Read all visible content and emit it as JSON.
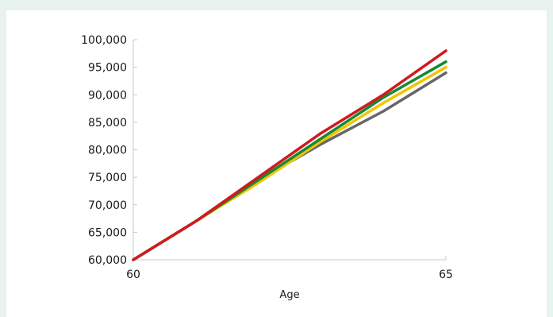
{
  "chart_data": {
    "type": "line",
    "title": "",
    "xlabel": "Age",
    "ylabel": "",
    "x": [
      60,
      61,
      62,
      63,
      64,
      65
    ],
    "xlim": [
      60,
      65
    ],
    "ylim": [
      60000,
      100000
    ],
    "x_ticks": [
      60,
      65
    ],
    "x_tick_labels": [
      "60",
      "65"
    ],
    "y_ticks": [
      60000,
      65000,
      70000,
      75000,
      80000,
      85000,
      90000,
      95000,
      100000
    ],
    "y_tick_labels": [
      "60,000",
      "65,000",
      "70,000",
      "75,000",
      "80,000",
      "85,000",
      "90,000",
      "95,000",
      "100,000"
    ],
    "grid": false,
    "legend": "none",
    "series": [
      {
        "color": "#666666",
        "values": [
          60000,
          67000,
          74500,
          81000,
          87000,
          94000
        ]
      },
      {
        "color": "#f2c500",
        "values": [
          60000,
          67000,
          74000,
          81500,
          88500,
          95000
        ]
      },
      {
        "color": "#138a36",
        "values": [
          60000,
          67000,
          74500,
          82000,
          89500,
          96000
        ]
      },
      {
        "color": "#d11a1f",
        "values": [
          60000,
          67000,
          75000,
          83000,
          90000,
          98000
        ]
      }
    ]
  }
}
